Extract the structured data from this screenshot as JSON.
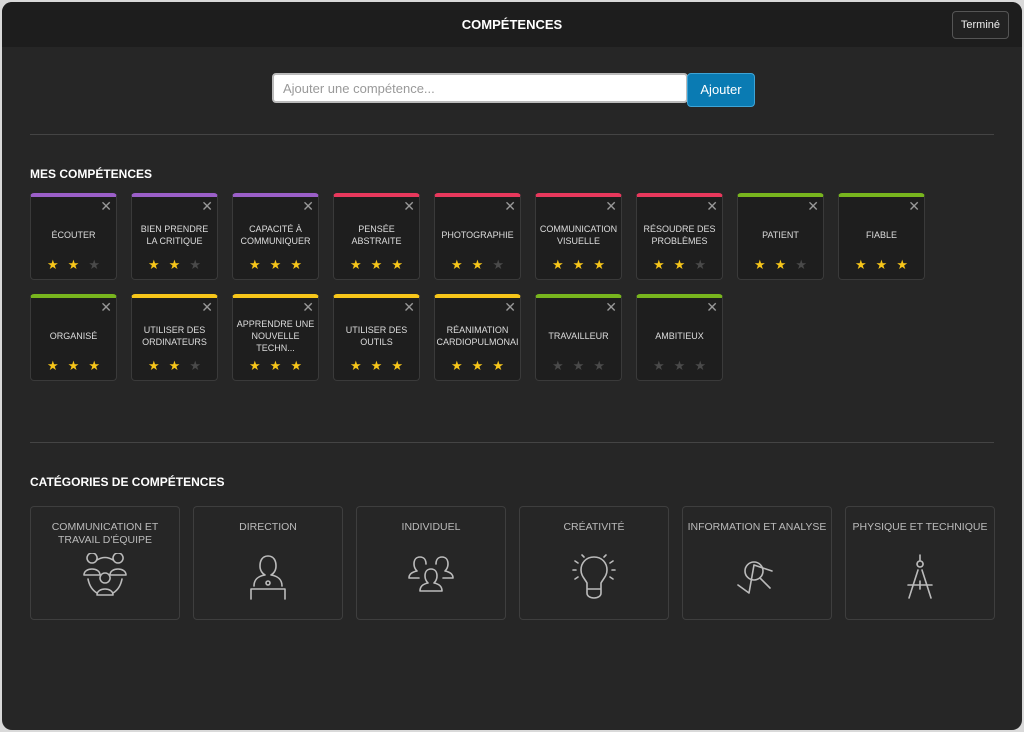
{
  "header": {
    "title": "COMPÉTENCES",
    "done_label": "Terminé"
  },
  "add": {
    "placeholder": "Ajouter une compétence...",
    "button_label": "Ajouter"
  },
  "my_skills": {
    "title": "MES COMPÉTENCES",
    "colors": {
      "purple": "#9b5fc8",
      "red": "#e8385c",
      "green": "#78b51e",
      "yellow": "#f7c61a"
    },
    "items": [
      {
        "name": "ÉCOUTER",
        "color": "purple",
        "rating": 2
      },
      {
        "name": "BIEN PRENDRE LA CRITIQUE",
        "color": "purple",
        "rating": 2
      },
      {
        "name": "CAPACITÉ À COMMUNIQUER",
        "color": "purple",
        "rating": 3
      },
      {
        "name": "PENSÉE ABSTRAITE",
        "color": "red",
        "rating": 3
      },
      {
        "name": "PHOTOGRAPHIE",
        "color": "red",
        "rating": 2
      },
      {
        "name": "COMMUNICATION VISUELLE",
        "color": "red",
        "rating": 3
      },
      {
        "name": "RÉSOUDRE DES PROBLÈMES",
        "color": "red",
        "rating": 2
      },
      {
        "name": "PATIENT",
        "color": "green",
        "rating": 2
      },
      {
        "name": "FIABLE",
        "color": "green",
        "rating": 3
      },
      {
        "name": "ORGANISÉ",
        "color": "green",
        "rating": 3
      },
      {
        "name": "UTILISER DES ORDINATEURS",
        "color": "yellow",
        "rating": 2
      },
      {
        "name": "APPRENDRE UNE NOUVELLE TECHN...",
        "color": "yellow",
        "rating": 3
      },
      {
        "name": "UTILISER DES OUTILS",
        "color": "yellow",
        "rating": 3
      },
      {
        "name": "RÉANIMATION CARDIOPULMONAI",
        "color": "yellow",
        "rating": 3
      },
      {
        "name": "TRAVAILLEUR",
        "color": "green",
        "rating": 0
      },
      {
        "name": "AMBITIEUX",
        "color": "green",
        "rating": 0
      }
    ]
  },
  "categories": {
    "title": "CATÉGORIES DE COMPÉTENCES",
    "items": [
      {
        "label": "COMMUNICATION ET TRAVAIL D'ÉQUIPE",
        "icon": "team-icon"
      },
      {
        "label": "DIRECTION",
        "icon": "speaker-icon"
      },
      {
        "label": "INDIVIDUEL",
        "icon": "people-icon"
      },
      {
        "label": "CRÉATIVITÉ",
        "icon": "lightbulb-icon"
      },
      {
        "label": "INFORMATION ET ANALYSE",
        "icon": "magnifier-icon"
      },
      {
        "label": "PHYSIQUE ET TECHNIQUE",
        "icon": "compass-icon"
      }
    ]
  }
}
